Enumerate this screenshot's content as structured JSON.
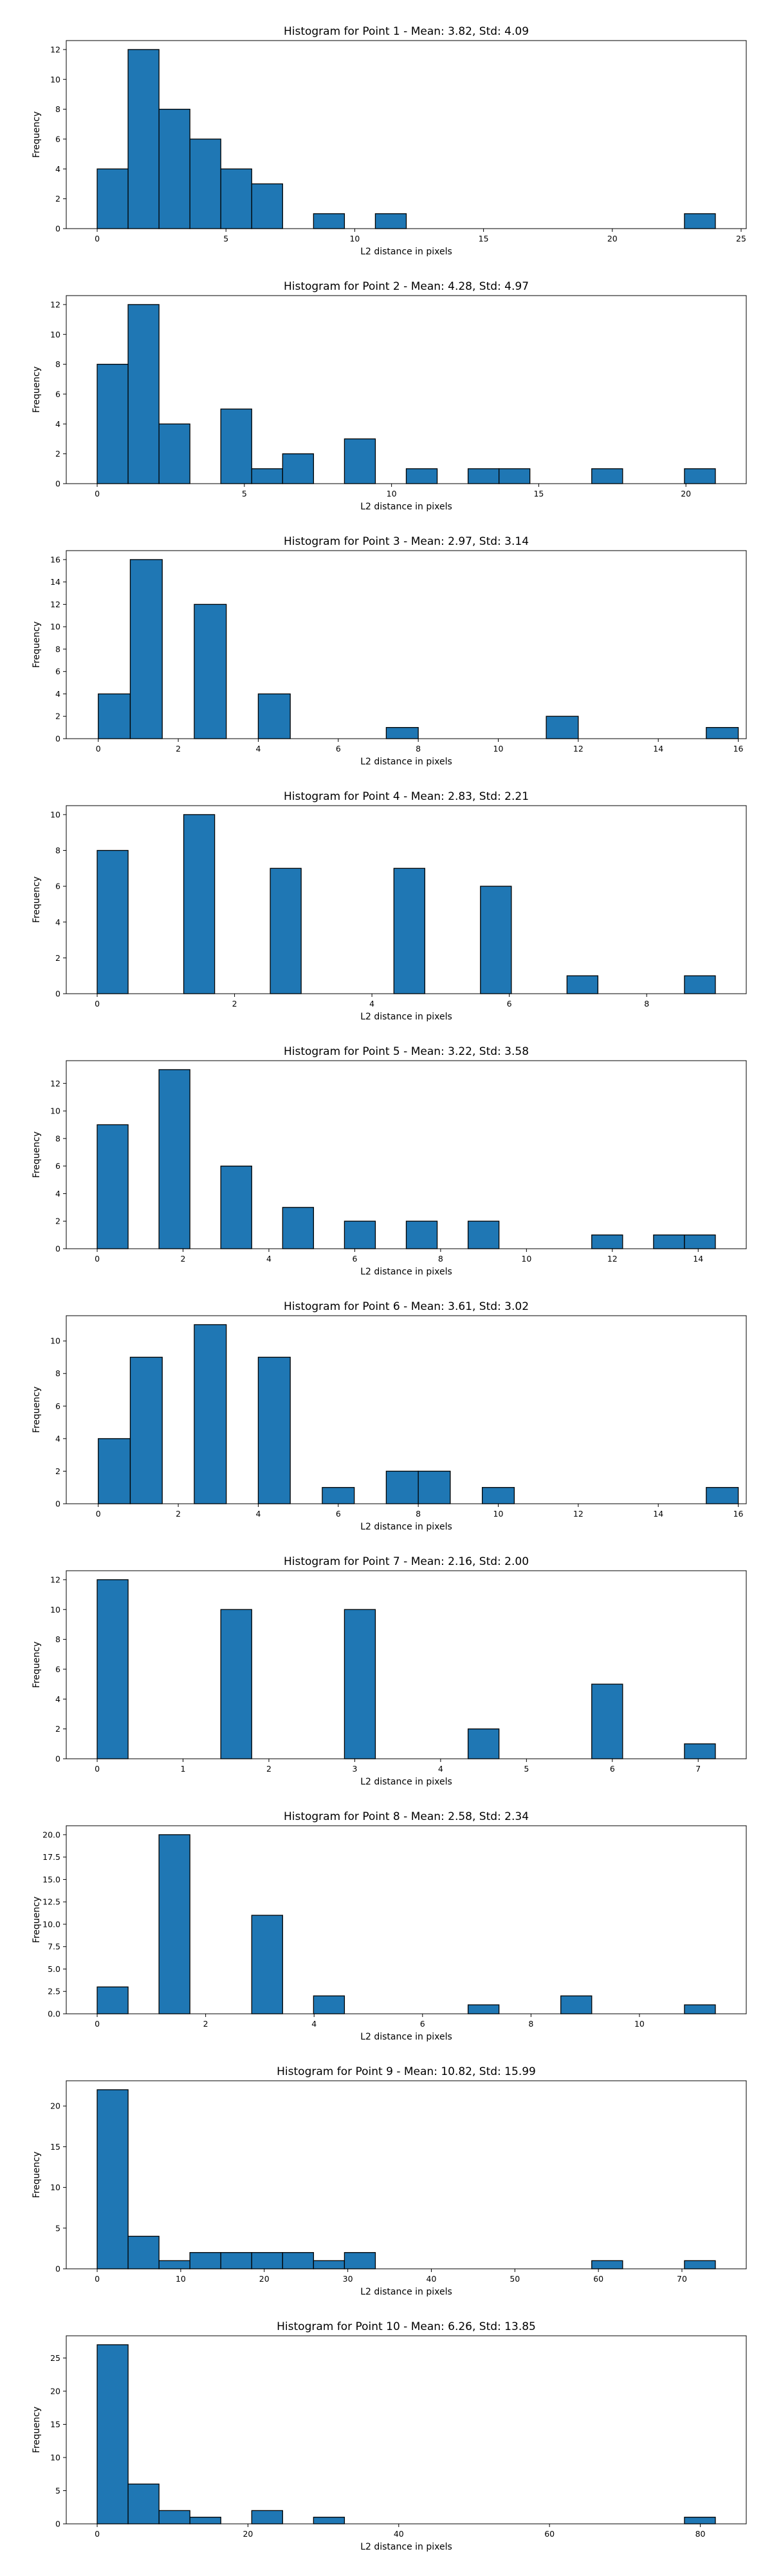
{
  "style": {
    "bar_color": "#1f77b4",
    "edge_color": "#000000"
  },
  "chart_data": [
    {
      "type": "bar",
      "title": "Histogram for Point 1 - Mean: 3.82, Std: 4.09",
      "xlabel": "L2 distance in pixels",
      "ylabel": "Frequency",
      "xlim": [
        -1.2,
        25.2
      ],
      "ylim": [
        0,
        12.6
      ],
      "grid": false,
      "xticks": [
        0,
        5,
        10,
        15,
        20,
        25
      ],
      "xtick_labels": [
        "0",
        "5",
        "10",
        "15",
        "20",
        "25"
      ],
      "yticks": [
        0,
        2,
        4,
        6,
        8,
        10,
        12
      ],
      "ytick_labels": [
        "0",
        "2",
        "4",
        "6",
        "8",
        "10",
        "12"
      ],
      "bins": [
        [
          0,
          1.2,
          4
        ],
        [
          1.2,
          2.4,
          12
        ],
        [
          2.4,
          3.6,
          8
        ],
        [
          3.6,
          4.8,
          6
        ],
        [
          4.8,
          6.0,
          4
        ],
        [
          6.0,
          7.2,
          3
        ],
        [
          8.4,
          9.6,
          1
        ],
        [
          10.8,
          12.0,
          1
        ],
        [
          22.8,
          24.0,
          1
        ]
      ]
    },
    {
      "type": "bar",
      "title": "Histogram for Point 2 - Mean: 4.28, Std: 4.97",
      "xlabel": "L2 distance in pixels",
      "ylabel": "Frequency",
      "xlim": [
        -1.05,
        22.05
      ],
      "ylim": [
        0,
        12.6
      ],
      "grid": false,
      "xticks": [
        0,
        5,
        10,
        15,
        20
      ],
      "xtick_labels": [
        "0",
        "5",
        "10",
        "15",
        "20"
      ],
      "yticks": [
        0,
        2,
        4,
        6,
        8,
        10,
        12
      ],
      "ytick_labels": [
        "0",
        "2",
        "4",
        "6",
        "8",
        "10",
        "12"
      ],
      "bins": [
        [
          0,
          1.05,
          8
        ],
        [
          1.05,
          2.1,
          12
        ],
        [
          2.1,
          3.15,
          4
        ],
        [
          4.2,
          5.25,
          5
        ],
        [
          5.25,
          6.3,
          1
        ],
        [
          6.3,
          7.35,
          2
        ],
        [
          8.4,
          9.45,
          3
        ],
        [
          10.5,
          11.55,
          1
        ],
        [
          12.6,
          13.65,
          1
        ],
        [
          13.65,
          14.7,
          1
        ],
        [
          16.8,
          17.85,
          1
        ],
        [
          19.95,
          21.0,
          1
        ]
      ]
    },
    {
      "type": "bar",
      "title": "Histogram for Point 3 - Mean: 2.97, Std: 3.14",
      "xlabel": "L2 distance in pixels",
      "ylabel": "Frequency",
      "xlim": [
        -0.8,
        16.2
      ],
      "ylim": [
        0,
        16.8
      ],
      "grid": false,
      "xticks": [
        0,
        2,
        4,
        6,
        8,
        10,
        12,
        14,
        16
      ],
      "xtick_labels": [
        "0",
        "2",
        "4",
        "6",
        "8",
        "10",
        "12",
        "14",
        "16"
      ],
      "yticks": [
        0,
        2,
        4,
        6,
        8,
        10,
        12,
        14,
        16
      ],
      "ytick_labels": [
        "0",
        "2",
        "4",
        "6",
        "8",
        "10",
        "12",
        "14",
        "16"
      ],
      "bins": [
        [
          0,
          0.8,
          4
        ],
        [
          0.8,
          1.6,
          16
        ],
        [
          2.4,
          3.2,
          12
        ],
        [
          4.0,
          4.8,
          4
        ],
        [
          7.2,
          8.0,
          1
        ],
        [
          11.2,
          12.0,
          2
        ],
        [
          15.2,
          16.0,
          1
        ]
      ]
    },
    {
      "type": "bar",
      "title": "Histogram for Point 4 - Mean: 2.83, Std: 2.21",
      "xlabel": "L2 distance in pixels",
      "ylabel": "Frequency",
      "xlim": [
        -0.45,
        9.45
      ],
      "ylim": [
        0,
        10.5
      ],
      "grid": false,
      "xticks": [
        0,
        2,
        4,
        6,
        8
      ],
      "xtick_labels": [
        "0",
        "2",
        "4",
        "6",
        "8"
      ],
      "yticks": [
        0,
        2,
        4,
        6,
        8,
        10
      ],
      "ytick_labels": [
        "0",
        "2",
        "4",
        "6",
        "8",
        "10"
      ],
      "bins": [
        [
          0,
          0.45,
          8
        ],
        [
          1.26,
          1.71,
          10
        ],
        [
          2.52,
          2.97,
          7
        ],
        [
          4.32,
          4.77,
          7
        ],
        [
          5.58,
          6.03,
          6
        ],
        [
          6.84,
          7.29,
          1
        ],
        [
          8.55,
          9.0,
          1
        ]
      ]
    },
    {
      "type": "bar",
      "title": "Histogram for Point 5 - Mean: 3.22, Std: 3.58",
      "xlabel": "L2 distance in pixels",
      "ylabel": "Frequency",
      "xlim": [
        -0.72,
        15.12
      ],
      "ylim": [
        0,
        13.65
      ],
      "grid": false,
      "xticks": [
        0,
        2,
        4,
        6,
        8,
        10,
        12,
        14
      ],
      "xtick_labels": [
        "0",
        "2",
        "4",
        "6",
        "8",
        "10",
        "12",
        "14"
      ],
      "yticks": [
        0,
        2,
        4,
        6,
        8,
        10,
        12
      ],
      "ytick_labels": [
        "0",
        "2",
        "4",
        "6",
        "8",
        "10",
        "12"
      ],
      "bins": [
        [
          0,
          0.72,
          9
        ],
        [
          1.44,
          2.16,
          13
        ],
        [
          2.88,
          3.6,
          6
        ],
        [
          4.32,
          5.04,
          3
        ],
        [
          5.76,
          6.48,
          2
        ],
        [
          7.2,
          7.92,
          2
        ],
        [
          8.64,
          9.36,
          2
        ],
        [
          11.52,
          12.24,
          1
        ],
        [
          12.96,
          13.68,
          1
        ],
        [
          13.68,
          14.4,
          1
        ]
      ]
    },
    {
      "type": "bar",
      "title": "Histogram for Point 6 - Mean: 3.61, Std: 3.02",
      "xlabel": "L2 distance in pixels",
      "ylabel": "Frequency",
      "xlim": [
        -0.8,
        16.2
      ],
      "ylim": [
        0,
        11.55
      ],
      "grid": false,
      "xticks": [
        0,
        2,
        4,
        6,
        8,
        10,
        12,
        14,
        16
      ],
      "xtick_labels": [
        "0",
        "2",
        "4",
        "6",
        "8",
        "10",
        "12",
        "14",
        "16"
      ],
      "yticks": [
        0,
        2,
        4,
        6,
        8,
        10
      ],
      "ytick_labels": [
        "0",
        "2",
        "4",
        "6",
        "8",
        "10"
      ],
      "bins": [
        [
          0,
          0.8,
          4
        ],
        [
          0.8,
          1.6,
          9
        ],
        [
          2.4,
          3.2,
          11
        ],
        [
          4.0,
          4.8,
          9
        ],
        [
          5.6,
          6.4,
          1
        ],
        [
          7.2,
          8.0,
          2
        ],
        [
          8.0,
          8.8,
          2
        ],
        [
          9.6,
          10.4,
          1
        ],
        [
          15.2,
          16.0,
          1
        ]
      ]
    },
    {
      "type": "bar",
      "title": "Histogram for Point 7 - Mean: 2.16, Std: 2.00",
      "xlabel": "L2 distance in pixels",
      "ylabel": "Frequency",
      "xlim": [
        -0.36,
        7.56
      ],
      "ylim": [
        0,
        12.6
      ],
      "grid": false,
      "xticks": [
        0,
        1,
        2,
        3,
        4,
        5,
        6,
        7
      ],
      "xtick_labels": [
        "0",
        "1",
        "2",
        "3",
        "4",
        "5",
        "6",
        "7"
      ],
      "yticks": [
        0,
        2,
        4,
        6,
        8,
        10,
        12
      ],
      "ytick_labels": [
        "0",
        "2",
        "4",
        "6",
        "8",
        "10",
        "12"
      ],
      "bins": [
        [
          0,
          0.36,
          12
        ],
        [
          1.44,
          1.8,
          10
        ],
        [
          2.88,
          3.24,
          10
        ],
        [
          4.32,
          4.68,
          2
        ],
        [
          5.76,
          6.12,
          5
        ],
        [
          6.84,
          7.2,
          1
        ]
      ]
    },
    {
      "type": "bar",
      "title": "Histogram for Point 8 - Mean: 2.58, Std: 2.34",
      "xlabel": "L2 distance in pixels",
      "ylabel": "Frequency",
      "xlim": [
        -0.57,
        11.97
      ],
      "ylim": [
        0,
        21
      ],
      "grid": false,
      "xticks": [
        0,
        2,
        4,
        6,
        8,
        10
      ],
      "xtick_labels": [
        "0",
        "2",
        "4",
        "6",
        "8",
        "10"
      ],
      "yticks": [
        0,
        2.5,
        5,
        7.5,
        10,
        12.5,
        15,
        17.5,
        20
      ],
      "ytick_labels": [
        "0.0",
        "2.5",
        "5.0",
        "7.5",
        "10.0",
        "12.5",
        "15.0",
        "17.5",
        "20.0"
      ],
      "bins": [
        [
          0,
          0.57,
          3
        ],
        [
          1.14,
          1.71,
          20
        ],
        [
          2.85,
          3.42,
          11
        ],
        [
          3.99,
          4.56,
          2
        ],
        [
          6.84,
          7.41,
          1
        ],
        [
          8.55,
          9.12,
          2
        ],
        [
          10.83,
          11.4,
          1
        ]
      ]
    },
    {
      "type": "bar",
      "title": "Histogram for Point 9 - Mean: 10.82, Std: 15.99",
      "xlabel": "L2 distance in pixels",
      "ylabel": "Frequency",
      "xlim": [
        -3.7,
        77.7
      ],
      "ylim": [
        0,
        23.1
      ],
      "grid": false,
      "xticks": [
        0,
        10,
        20,
        30,
        40,
        50,
        60,
        70
      ],
      "xtick_labels": [
        "0",
        "10",
        "20",
        "30",
        "40",
        "50",
        "60",
        "70"
      ],
      "yticks": [
        0,
        5,
        10,
        15,
        20
      ],
      "ytick_labels": [
        "0",
        "5",
        "10",
        "15",
        "20"
      ],
      "bins": [
        [
          0,
          3.7,
          22
        ],
        [
          3.7,
          7.4,
          4
        ],
        [
          7.4,
          11.1,
          1
        ],
        [
          11.1,
          14.8,
          2
        ],
        [
          14.8,
          18.5,
          2
        ],
        [
          18.5,
          22.2,
          2
        ],
        [
          22.2,
          25.9,
          2
        ],
        [
          25.9,
          29.6,
          1
        ],
        [
          29.6,
          33.3,
          2
        ],
        [
          59.2,
          62.9,
          1
        ],
        [
          70.3,
          74.0,
          1
        ]
      ]
    },
    {
      "type": "bar",
      "title": "Histogram for Point 10 - Mean: 6.26, Std: 13.85",
      "xlabel": "L2 distance in pixels",
      "ylabel": "Frequency",
      "xlim": [
        -4.1,
        86.1
      ],
      "ylim": [
        0,
        28.35
      ],
      "grid": false,
      "xticks": [
        0,
        20,
        40,
        60,
        80
      ],
      "xtick_labels": [
        "0",
        "20",
        "40",
        "60",
        "80"
      ],
      "yticks": [
        0,
        5,
        10,
        15,
        20,
        25
      ],
      "ytick_labels": [
        "0",
        "5",
        "10",
        "15",
        "20",
        "25"
      ],
      "bins": [
        [
          0,
          4.1,
          27
        ],
        [
          4.1,
          8.2,
          6
        ],
        [
          8.2,
          12.3,
          2
        ],
        [
          12.3,
          16.4,
          1
        ],
        [
          20.5,
          24.6,
          2
        ],
        [
          28.7,
          32.8,
          1
        ],
        [
          77.9,
          82.0,
          1
        ]
      ]
    }
  ]
}
